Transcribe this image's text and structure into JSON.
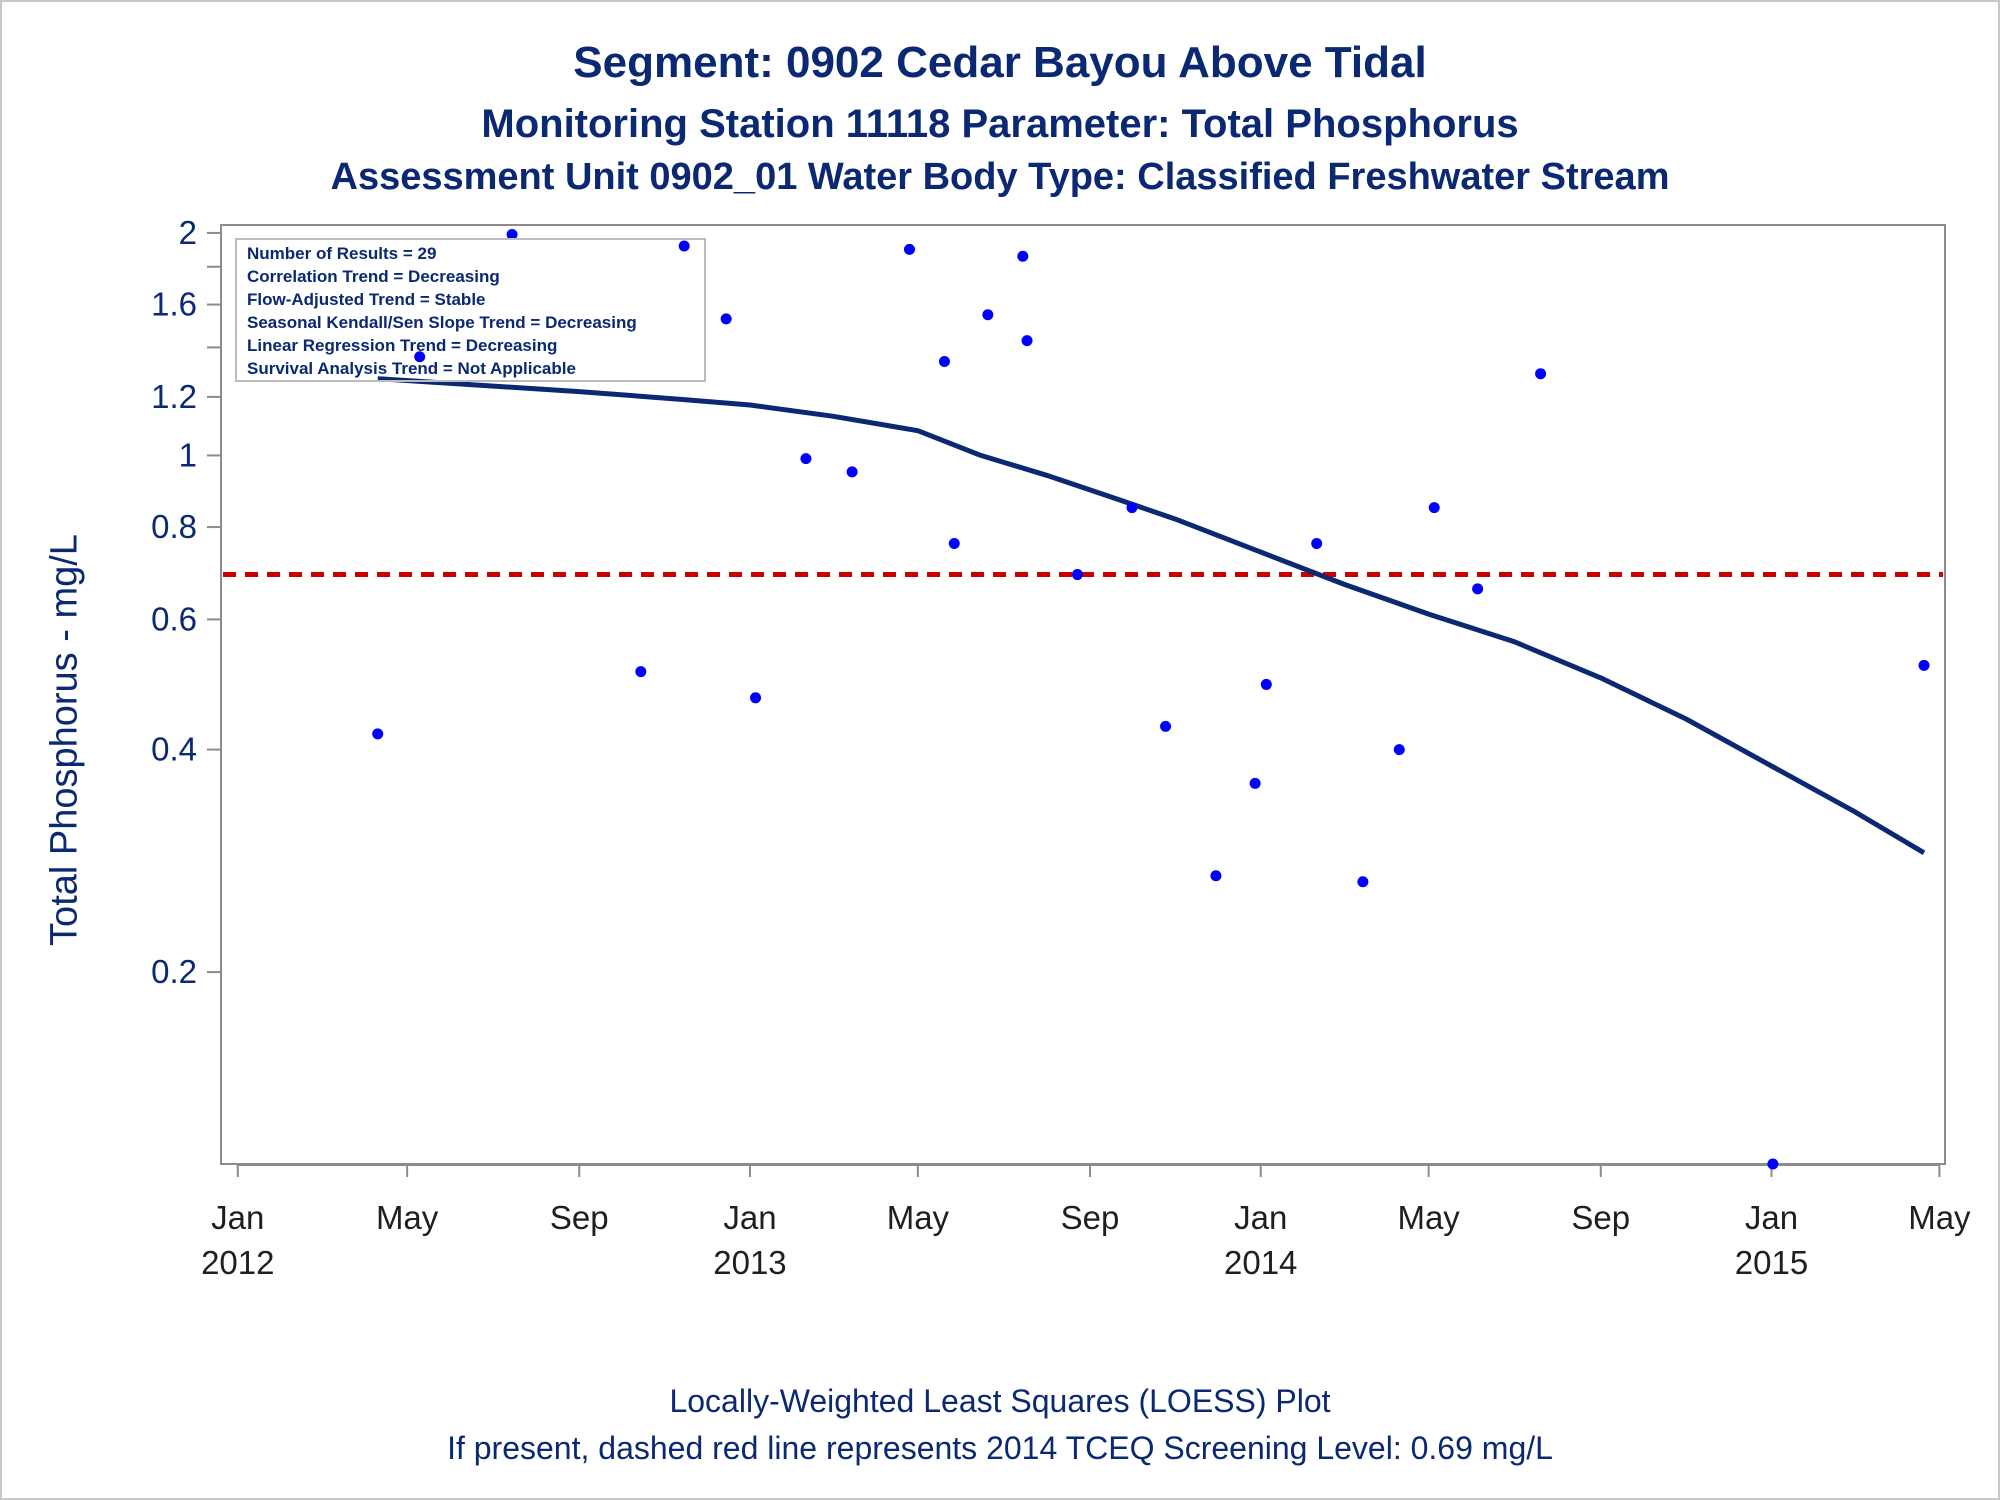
{
  "title": {
    "line1": "Segment: 0902  Cedar Bayou Above Tidal",
    "line2": "Monitoring Station 11118 Parameter: Total Phosphorus",
    "line3": "Assessment Unit 0902_01   Water Body Type: Classified Freshwater Stream"
  },
  "footer": {
    "line1": "Locally-Weighted Least Squares (LOESS) Plot",
    "line2": "If present, dashed red line represents 2014 TCEQ Screening Level: 0.69 mg/L"
  },
  "chart_data": {
    "type": "scatter",
    "ylabel": "Total Phosphorus - mg/L",
    "y_scale": "log",
    "ylim": [
      0.11,
      2.05
    ],
    "xlim": [
      "2011-12-20",
      "2015-05-05"
    ],
    "yticks": [
      {
        "value": 0.2,
        "label": "0.2"
      },
      {
        "value": 0.4,
        "label": "0.4"
      },
      {
        "value": 0.6,
        "label": "0.6"
      },
      {
        "value": 0.8,
        "label": "0.8"
      },
      {
        "value": 1.0,
        "label": "1"
      },
      {
        "value": 1.2,
        "label": "1.2"
      },
      {
        "value": 1.6,
        "label": "1.6"
      },
      {
        "value": 2.0,
        "label": "2"
      }
    ],
    "yminor_ticks": [
      1.4,
      1.8
    ],
    "xticks": [
      {
        "date": "2012-01-01",
        "label": "Jan",
        "year": "2012"
      },
      {
        "date": "2012-05-01",
        "label": "May",
        "year": ""
      },
      {
        "date": "2012-09-01",
        "label": "Sep",
        "year": ""
      },
      {
        "date": "2013-01-01",
        "label": "Jan",
        "year": "2013"
      },
      {
        "date": "2013-05-01",
        "label": "May",
        "year": ""
      },
      {
        "date": "2013-09-01",
        "label": "Sep",
        "year": ""
      },
      {
        "date": "2014-01-01",
        "label": "Jan",
        "year": "2014"
      },
      {
        "date": "2014-05-01",
        "label": "May",
        "year": ""
      },
      {
        "date": "2014-09-01",
        "label": "Sep",
        "year": ""
      },
      {
        "date": "2015-01-01",
        "label": "Jan",
        "year": "2015"
      },
      {
        "date": "2015-05-01",
        "label": "May",
        "year": ""
      }
    ],
    "points": [
      {
        "x": "2012-04-10",
        "y": 0.42
      },
      {
        "x": "2012-05-10",
        "y": 1.36
      },
      {
        "x": "2012-07-15",
        "y": 1.99
      },
      {
        "x": "2012-10-15",
        "y": 0.51
      },
      {
        "x": "2012-11-15",
        "y": 1.92
      },
      {
        "x": "2012-12-15",
        "y": 1.53
      },
      {
        "x": "2013-01-05",
        "y": 0.47
      },
      {
        "x": "2013-02-10",
        "y": 0.99
      },
      {
        "x": "2013-03-15",
        "y": 0.95
      },
      {
        "x": "2013-04-25",
        "y": 1.9
      },
      {
        "x": "2013-05-20",
        "y": 1.34
      },
      {
        "x": "2013-05-27",
        "y": 0.76
      },
      {
        "x": "2013-06-20",
        "y": 1.55
      },
      {
        "x": "2013-07-15",
        "y": 1.86
      },
      {
        "x": "2013-07-18",
        "y": 1.43
      },
      {
        "x": "2013-08-23",
        "y": 0.69
      },
      {
        "x": "2013-10-01",
        "y": 0.85
      },
      {
        "x": "2013-10-25",
        "y": 0.43
      },
      {
        "x": "2013-11-30",
        "y": 0.27
      },
      {
        "x": "2013-12-28",
        "y": 0.36
      },
      {
        "x": "2014-01-05",
        "y": 0.49
      },
      {
        "x": "2014-02-10",
        "y": 0.76
      },
      {
        "x": "2014-03-15",
        "y": 0.265
      },
      {
        "x": "2014-04-10",
        "y": 0.4
      },
      {
        "x": "2014-05-05",
        "y": 0.85
      },
      {
        "x": "2014-06-05",
        "y": 0.66
      },
      {
        "x": "2014-07-20",
        "y": 1.29
      },
      {
        "x": "2015-01-02",
        "y": 0.11
      },
      {
        "x": "2015-04-20",
        "y": 0.52
      }
    ],
    "loess_line": [
      {
        "x": "2012-04-10",
        "y": 1.27
      },
      {
        "x": "2012-09-01",
        "y": 1.22
      },
      {
        "x": "2012-11-15",
        "y": 1.19
      },
      {
        "x": "2013-01-01",
        "y": 1.17
      },
      {
        "x": "2013-03-01",
        "y": 1.13
      },
      {
        "x": "2013-05-01",
        "y": 1.08
      },
      {
        "x": "2013-06-15",
        "y": 1.0
      },
      {
        "x": "2013-08-01",
        "y": 0.94
      },
      {
        "x": "2013-09-15",
        "y": 0.88
      },
      {
        "x": "2013-11-01",
        "y": 0.82
      },
      {
        "x": "2014-01-01",
        "y": 0.74
      },
      {
        "x": "2014-03-01",
        "y": 0.67
      },
      {
        "x": "2014-05-01",
        "y": 0.61
      },
      {
        "x": "2014-07-01",
        "y": 0.56
      },
      {
        "x": "2014-09-01",
        "y": 0.5
      },
      {
        "x": "2014-11-01",
        "y": 0.44
      },
      {
        "x": "2015-01-01",
        "y": 0.38
      },
      {
        "x": "2015-03-01",
        "y": 0.33
      },
      {
        "x": "2015-04-20",
        "y": 0.29
      }
    ],
    "reference_line": {
      "y": 0.69,
      "color": "#cc0000",
      "style": "dashed"
    },
    "colors": {
      "points": "#0000ff",
      "line": "#0b2873",
      "axis": "#8c8c8c",
      "text": "#0b2873"
    },
    "grid": false,
    "legend": {
      "placement": "top-left",
      "lines": [
        "Number of Results = 29",
        "Correlation Trend = Decreasing",
        "Flow-Adjusted Trend = Stable",
        "Seasonal Kendall/Sen Slope Trend = Decreasing",
        "Linear Regression Trend = Decreasing",
        "Survival Analysis Trend = Not Applicable"
      ]
    }
  }
}
